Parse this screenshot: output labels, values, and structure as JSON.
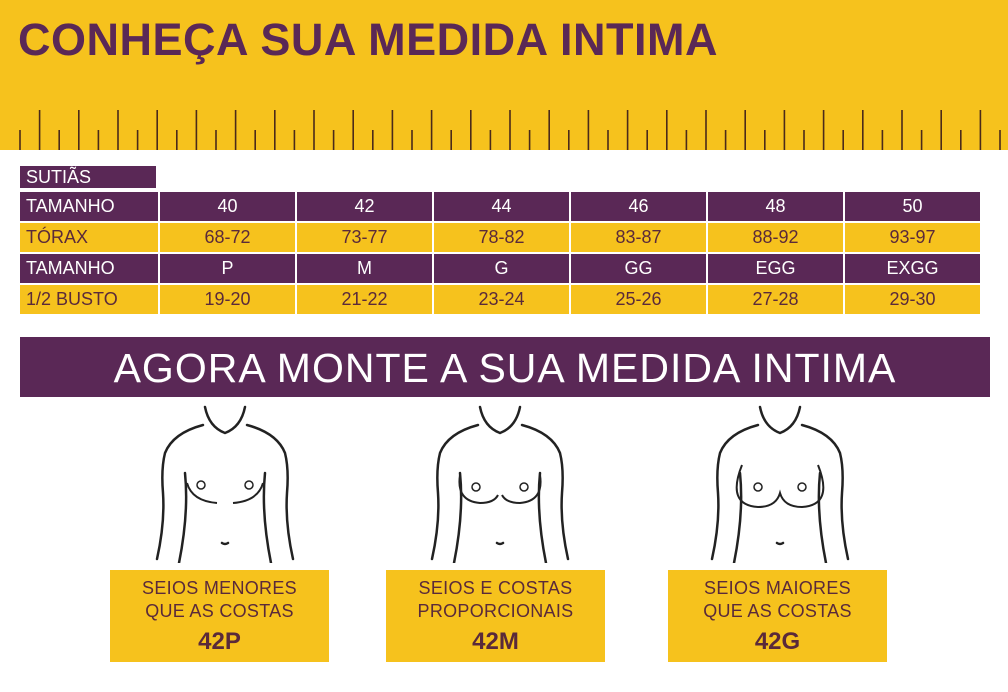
{
  "header": {
    "title": "CONHEÇA SUA MEDIDA INTIMA"
  },
  "table": {
    "caption": "SUTIÃS",
    "rows": [
      {
        "label": "TAMANHO",
        "values": [
          "40",
          "42",
          "44",
          "46",
          "48",
          "50"
        ]
      },
      {
        "label": "TÓRAX",
        "values": [
          "68-72",
          "73-77",
          "78-82",
          "83-87",
          "88-92",
          "93-97"
        ]
      },
      {
        "label": "TAMANHO",
        "values": [
          "P",
          "M",
          "G",
          "GG",
          "EGG",
          "EXGG"
        ]
      },
      {
        "label": "1/2 BUSTO",
        "values": [
          "19-20",
          "21-22",
          "23-24",
          "25-26",
          "27-28",
          "29-30"
        ]
      }
    ]
  },
  "banner": {
    "title": "AGORA MONTE A SUA MEDIDA INTIMA"
  },
  "cards": [
    {
      "line1": "SEIOS MENORES",
      "line2": "QUE AS COSTAS",
      "size": "42P"
    },
    {
      "line1": "SEIOS E COSTAS",
      "line2": "PROPORCIONAIS",
      "size": "42M"
    },
    {
      "line1": "SEIOS MAIORES",
      "line2": "QUE AS COSTAS",
      "size": "42G"
    }
  ],
  "colors": {
    "yellow": "#f6c21d",
    "purple": "#5a2856",
    "text_dark": "#5a2a3a"
  }
}
